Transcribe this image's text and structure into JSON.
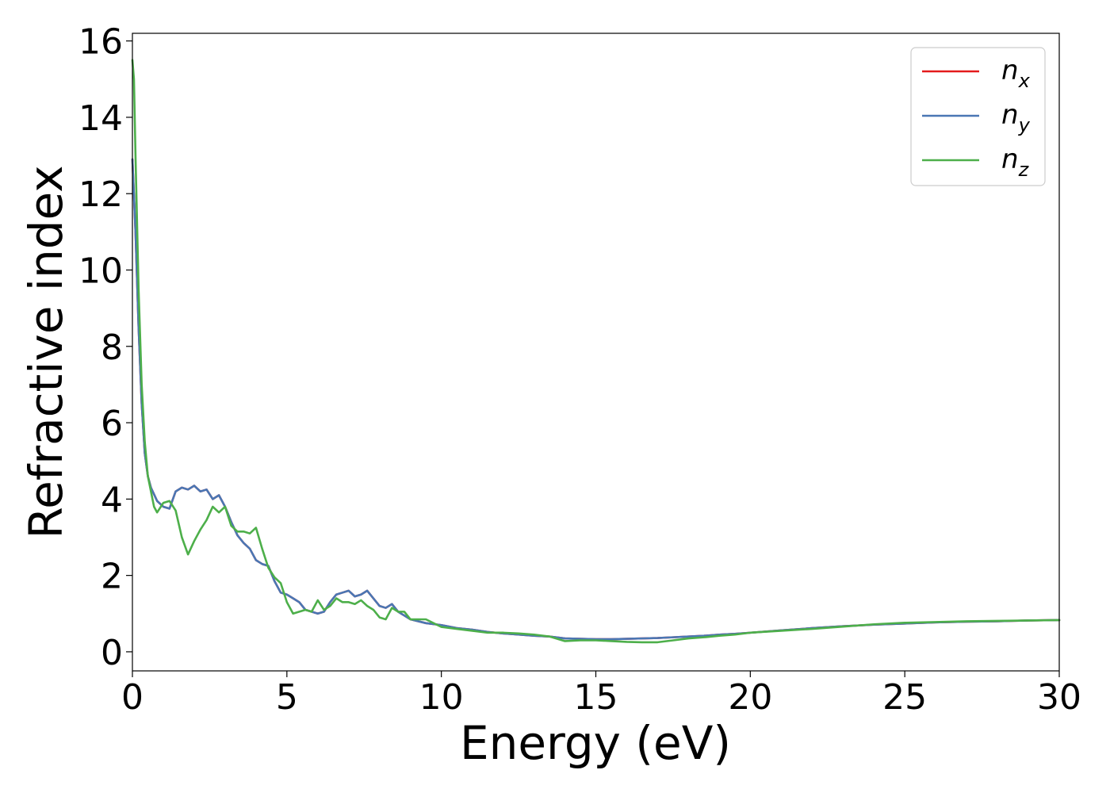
{
  "chart_data": {
    "type": "line",
    "xlabel": "Energy (eV)",
    "ylabel": "Refractive index",
    "xlim": [
      0,
      30
    ],
    "ylim": [
      -0.5,
      16.2
    ],
    "xticks": [
      0,
      5,
      10,
      15,
      20,
      25,
      30
    ],
    "yticks": [
      0,
      2,
      4,
      6,
      8,
      10,
      12,
      14,
      16
    ],
    "grid": false,
    "legend_position": "top-right",
    "series": [
      {
        "name": "n",
        "subscript": "x",
        "color": "#e41a1c",
        "x": [
          0,
          0.1,
          0.2,
          0.3,
          0.4,
          0.5,
          0.6,
          0.8,
          1.0,
          1.2,
          1.4,
          1.6,
          1.8,
          2.0,
          2.2,
          2.4,
          2.6,
          2.8,
          3.0,
          3.2,
          3.4,
          3.6,
          3.8,
          4.0,
          4.2,
          4.4,
          4.6,
          4.8,
          5.0,
          5.2,
          5.4,
          5.6,
          5.8,
          6.0,
          6.2,
          6.4,
          6.6,
          6.8,
          7.0,
          7.2,
          7.4,
          7.6,
          7.8,
          8.0,
          8.2,
          8.4,
          8.6,
          8.8,
          9.0,
          9.5,
          10.0,
          10.5,
          11.0,
          11.5,
          12.0,
          12.5,
          13.0,
          13.5,
          14.0,
          14.5,
          15.0,
          15.5,
          16.0,
          16.5,
          17.0,
          17.5,
          18.0,
          18.5,
          19.0,
          19.5,
          20.0,
          21.0,
          22.0,
          23.0,
          24.0,
          25.0,
          26.0,
          27.0,
          28.0,
          29.0,
          30.0
        ],
        "y": [
          12.9,
          11.0,
          8.5,
          6.5,
          5.2,
          4.6,
          4.3,
          3.95,
          3.8,
          3.75,
          4.2,
          4.3,
          4.25,
          4.35,
          4.2,
          4.25,
          4.0,
          4.1,
          3.8,
          3.4,
          3.05,
          2.85,
          2.7,
          2.4,
          2.3,
          2.25,
          1.85,
          1.55,
          1.5,
          1.4,
          1.3,
          1.1,
          1.05,
          1.0,
          1.05,
          1.3,
          1.5,
          1.55,
          1.6,
          1.45,
          1.5,
          1.6,
          1.4,
          1.2,
          1.15,
          1.25,
          1.05,
          0.95,
          0.85,
          0.75,
          0.7,
          0.62,
          0.58,
          0.52,
          0.48,
          0.45,
          0.42,
          0.4,
          0.35,
          0.34,
          0.33,
          0.33,
          0.34,
          0.35,
          0.36,
          0.38,
          0.4,
          0.42,
          0.45,
          0.47,
          0.5,
          0.56,
          0.62,
          0.67,
          0.71,
          0.74,
          0.77,
          0.79,
          0.8,
          0.82,
          0.83
        ]
      },
      {
        "name": "n",
        "subscript": "y",
        "color": "#4a77b4",
        "x": [
          0,
          0.1,
          0.2,
          0.3,
          0.4,
          0.5,
          0.6,
          0.8,
          1.0,
          1.2,
          1.4,
          1.6,
          1.8,
          2.0,
          2.2,
          2.4,
          2.6,
          2.8,
          3.0,
          3.2,
          3.4,
          3.6,
          3.8,
          4.0,
          4.2,
          4.4,
          4.6,
          4.8,
          5.0,
          5.2,
          5.4,
          5.6,
          5.8,
          6.0,
          6.2,
          6.4,
          6.6,
          6.8,
          7.0,
          7.2,
          7.4,
          7.6,
          7.8,
          8.0,
          8.2,
          8.4,
          8.6,
          8.8,
          9.0,
          9.5,
          10.0,
          10.5,
          11.0,
          11.5,
          12.0,
          12.5,
          13.0,
          13.5,
          14.0,
          14.5,
          15.0,
          15.5,
          16.0,
          16.5,
          17.0,
          17.5,
          18.0,
          18.5,
          19.0,
          19.5,
          20.0,
          21.0,
          22.0,
          23.0,
          24.0,
          25.0,
          26.0,
          27.0,
          28.0,
          29.0,
          30.0
        ],
        "y": [
          12.9,
          11.0,
          8.5,
          6.5,
          5.2,
          4.6,
          4.3,
          3.95,
          3.8,
          3.75,
          4.2,
          4.3,
          4.25,
          4.35,
          4.2,
          4.25,
          4.0,
          4.1,
          3.8,
          3.4,
          3.05,
          2.85,
          2.7,
          2.4,
          2.3,
          2.25,
          1.85,
          1.55,
          1.5,
          1.4,
          1.3,
          1.1,
          1.05,
          1.0,
          1.05,
          1.3,
          1.5,
          1.55,
          1.6,
          1.45,
          1.5,
          1.6,
          1.4,
          1.2,
          1.15,
          1.25,
          1.05,
          0.95,
          0.85,
          0.75,
          0.7,
          0.62,
          0.58,
          0.52,
          0.48,
          0.45,
          0.42,
          0.4,
          0.35,
          0.34,
          0.33,
          0.33,
          0.34,
          0.35,
          0.36,
          0.38,
          0.4,
          0.42,
          0.45,
          0.47,
          0.5,
          0.56,
          0.62,
          0.67,
          0.71,
          0.74,
          0.77,
          0.79,
          0.8,
          0.82,
          0.83
        ]
      },
      {
        "name": "n",
        "subscript": "z",
        "color": "#4daf4a",
        "x": [
          0,
          0.05,
          0.1,
          0.2,
          0.3,
          0.4,
          0.5,
          0.6,
          0.7,
          0.8,
          1.0,
          1.2,
          1.4,
          1.6,
          1.8,
          2.0,
          2.2,
          2.4,
          2.6,
          2.8,
          3.0,
          3.2,
          3.4,
          3.6,
          3.8,
          4.0,
          4.2,
          4.4,
          4.6,
          4.8,
          5.0,
          5.2,
          5.4,
          5.6,
          5.8,
          6.0,
          6.2,
          6.4,
          6.6,
          6.8,
          7.0,
          7.2,
          7.4,
          7.6,
          7.8,
          8.0,
          8.2,
          8.4,
          8.6,
          8.8,
          9.0,
          9.5,
          10.0,
          10.5,
          11.0,
          11.5,
          12.0,
          12.5,
          13.0,
          13.5,
          14.0,
          14.5,
          15.0,
          15.5,
          16.0,
          16.5,
          17.0,
          17.5,
          18.0,
          18.5,
          19.0,
          19.5,
          20.0,
          21.0,
          22.0,
          23.0,
          24.0,
          25.0,
          26.0,
          27.0,
          28.0,
          29.0,
          30.0
        ],
        "y": [
          15.5,
          15.0,
          13.0,
          9.5,
          7.0,
          5.5,
          4.6,
          4.2,
          3.8,
          3.65,
          3.9,
          3.95,
          3.7,
          3.0,
          2.55,
          2.9,
          3.2,
          3.45,
          3.8,
          3.65,
          3.8,
          3.3,
          3.15,
          3.15,
          3.1,
          3.25,
          2.7,
          2.2,
          1.95,
          1.8,
          1.3,
          1.0,
          1.05,
          1.1,
          1.05,
          1.35,
          1.1,
          1.2,
          1.4,
          1.3,
          1.3,
          1.25,
          1.35,
          1.2,
          1.1,
          0.9,
          0.85,
          1.15,
          1.05,
          1.05,
          0.85,
          0.85,
          0.65,
          0.6,
          0.55,
          0.5,
          0.5,
          0.48,
          0.45,
          0.4,
          0.28,
          0.3,
          0.3,
          0.28,
          0.26,
          0.25,
          0.25,
          0.3,
          0.35,
          0.38,
          0.42,
          0.45,
          0.5,
          0.55,
          0.6,
          0.66,
          0.72,
          0.76,
          0.78,
          0.8,
          0.81,
          0.82,
          0.83
        ]
      }
    ]
  }
}
